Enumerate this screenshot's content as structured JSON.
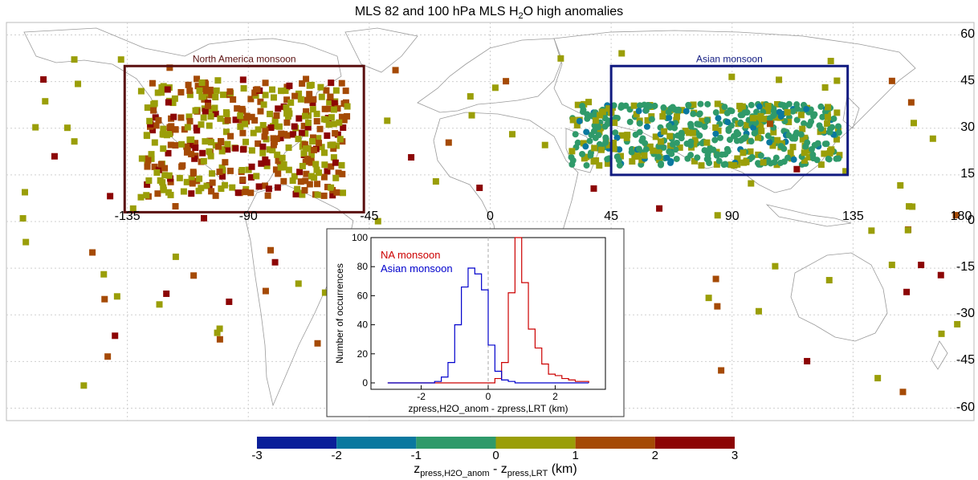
{
  "title": {
    "pre": "MLS 82 and 100 hPa MLS H",
    "sub": "2",
    "post": "O high anomalies"
  },
  "map": {
    "lon_ticks": [
      "-135",
      "-90",
      "-45",
      "0",
      "45",
      "90",
      "135",
      "180"
    ],
    "lat_ticks": [
      "60",
      "45",
      "30",
      "15",
      "0",
      "-15",
      "-30",
      "-45",
      "-60"
    ],
    "regions": [
      {
        "label": "North America monsoon",
        "color": "#5a0f0f"
      },
      {
        "label": "Asian monsoon",
        "color": "#101a80"
      }
    ]
  },
  "colorbar": {
    "ticks": [
      "-3",
      "-2",
      "-1",
      "0",
      "1",
      "2",
      "3"
    ],
    "colors": [
      "#0a1f99",
      "#0a789f",
      "#2f9a6a",
      "#2f9a6a",
      "#9a9e08",
      "#a54a05",
      "#8c0505"
    ],
    "label_main": "z",
    "label_sub1": "press,H2O_anom",
    "label_mid": " - z",
    "label_sub2": "press,LRT",
    "label_unit": " (km)"
  },
  "chart_data": {
    "type": "bar",
    "title": "",
    "xlabel": "zpress,H2O_anom - zpress,LRT (km)",
    "ylabel": "Number of occurrences",
    "xlim": [
      -3.5,
      3.5
    ],
    "ylim": [
      0,
      100
    ],
    "xticks": [
      "-2",
      "0",
      "2"
    ],
    "yticks": [
      "0",
      "20",
      "40",
      "60",
      "80",
      "100"
    ],
    "legend": "top-left",
    "bin_edges": [
      -3.0,
      -2.8,
      -2.6,
      -2.4,
      -2.2,
      -2.0,
      -1.8,
      -1.6,
      -1.4,
      -1.2,
      -1.0,
      -0.8,
      -0.6,
      -0.4,
      -0.2,
      0.0,
      0.2,
      0.4,
      0.6,
      0.8,
      1.0,
      1.2,
      1.4,
      1.6,
      1.8,
      2.0,
      2.2,
      2.4,
      2.6,
      2.8,
      3.0
    ],
    "series": [
      {
        "name": "NA monsoon",
        "color": "#cc0000",
        "values": [
          0,
          0,
          0,
          0,
          0,
          0,
          0,
          0,
          0,
          0,
          0,
          0,
          0,
          0,
          0,
          0,
          3,
          14,
          62,
          100,
          69,
          37,
          24,
          13,
          6,
          5,
          3,
          2,
          1,
          1
        ]
      },
      {
        "name": "Asian monsoon",
        "color": "#0000cc",
        "values": [
          0,
          0,
          0,
          0,
          0,
          0,
          0,
          1,
          4,
          14,
          40,
          66,
          79,
          75,
          64,
          26,
          8,
          2,
          1,
          0,
          0,
          0,
          0,
          0,
          0,
          0,
          0,
          0,
          0,
          0
        ]
      }
    ]
  }
}
